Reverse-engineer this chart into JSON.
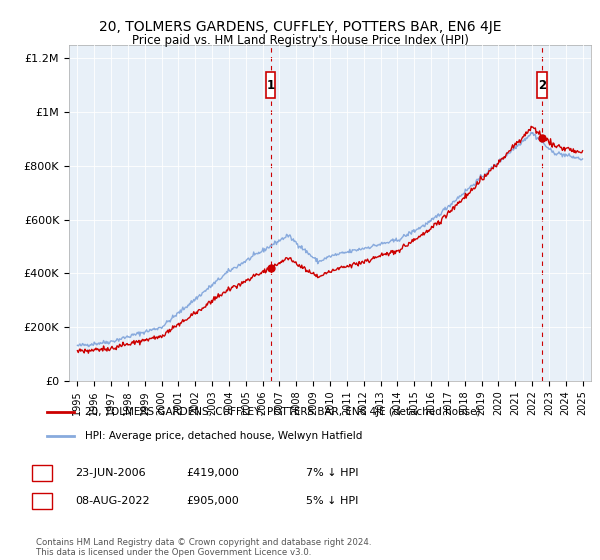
{
  "title": "20, TOLMERS GARDENS, CUFFLEY, POTTERS BAR, EN6 4JE",
  "subtitle": "Price paid vs. HM Land Registry's House Price Index (HPI)",
  "legend_line1": "20, TOLMERS GARDENS, CUFFLEY, POTTERS BAR, EN6 4JE (detached house)",
  "legend_line2": "HPI: Average price, detached house, Welwyn Hatfield",
  "annotation1_label": "1",
  "annotation1_date": "23-JUN-2006",
  "annotation1_price": "£419,000",
  "annotation1_hpi": "7% ↓ HPI",
  "annotation2_label": "2",
  "annotation2_date": "08-AUG-2022",
  "annotation2_price": "£905,000",
  "annotation2_hpi": "5% ↓ HPI",
  "footer": "Contains HM Land Registry data © Crown copyright and database right 2024.\nThis data is licensed under the Open Government Licence v3.0.",
  "sale1_x": 2006.48,
  "sale1_y": 419000,
  "sale2_x": 2022.6,
  "sale2_y": 905000,
  "vline1_x": 2006.48,
  "vline2_x": 2022.6,
  "red_color": "#cc0000",
  "blue_color": "#88aadd",
  "vline_color": "#cc0000",
  "bg_color": "#e8f0f8",
  "ylim": [
    0,
    1250000
  ],
  "xlim": [
    1994.5,
    2025.5
  ]
}
